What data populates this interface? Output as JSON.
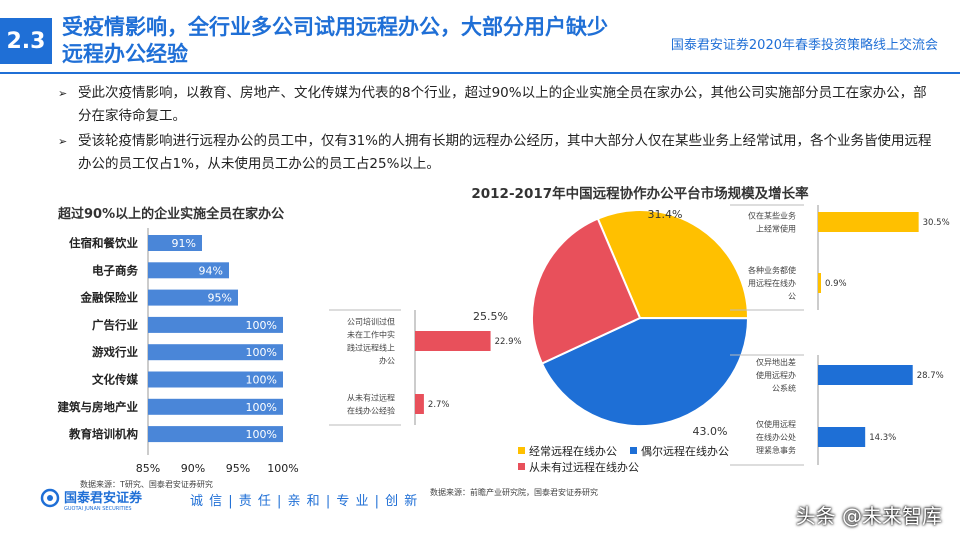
{
  "header": {
    "section_number": "2.3",
    "title": "受疫情影响，全行业多公司试用远程办公，大部分用户缺少远程办公经验",
    "event_name": "国泰君安证券2020年春季投资策略线上交流会"
  },
  "bullets": [
    "受此次疫情影响，以教育、房地产、文化传媒为代表的8个行业，超过90%以上的企业实施全员在家办公，其他公司实施部分员工在家办公，部分在家待命复工。",
    "受该轮疫情影响进行远程办公的员工中，仅有31%的人拥有长期的远程办公经历，其中大部分人仅在某些业务上经常试用，各个业务皆使用远程办公的员工仅占1%，从未使用员工办公的员工占25%以上。"
  ],
  "colors": {
    "brand": "#1f6fd6",
    "bar_blue": "#4a86d8",
    "pie_yellow": "#ffc000",
    "pie_red": "#e8505b",
    "pie_blue": "#1e6fd6"
  },
  "chart_data": [
    {
      "type": "bar",
      "orientation": "horizontal",
      "title": "超过90%以上的企业实施全员在家办公",
      "categories": [
        "住宿和餐饮业",
        "电子商务",
        "金融保险业",
        "广告行业",
        "游戏行业",
        "文化传媒",
        "建筑与房地产业",
        "教育培训机构"
      ],
      "values": [
        91,
        94,
        95,
        100,
        100,
        100,
        100,
        100
      ],
      "value_labels": [
        "91%",
        "94%",
        "95%",
        "100%",
        "100%",
        "100%",
        "100%",
        "100%"
      ],
      "xlim": [
        85,
        100
      ],
      "xticks": [
        "85%",
        "90%",
        "95%",
        "100%"
      ],
      "source": "数据来源：T研究、国泰君安证券研究"
    },
    {
      "type": "pie",
      "title": "2012-2017年中国远程协作办公平台市场规模及增长率",
      "slices": [
        {
          "name": "经常远程在线办公",
          "value": 31.4,
          "label": "31.4%"
        },
        {
          "name": "偶尔远程在线办公",
          "value": 43.0,
          "label": "43.0%"
        },
        {
          "name": "从未有过远程在线办公",
          "value": 25.5,
          "label": "25.5%"
        }
      ],
      "legend": [
        "经常远程在线办公",
        "偶尔远程在线办公",
        "从未有过远程在线办公"
      ],
      "source": "数据来源：前瞻产业研究院，国泰君安证券研究"
    },
    {
      "type": "bar",
      "orientation": "horizontal",
      "breakdown_of": "经常远程在线办公",
      "categories": [
        "仅在某些业务上经常使用",
        "各种业务都使用远程在线办公"
      ],
      "values": [
        30.5,
        0.9
      ],
      "value_labels": [
        "30.5%",
        "0.9%"
      ]
    },
    {
      "type": "bar",
      "orientation": "horizontal",
      "breakdown_of": "偶尔远程在线办公",
      "categories": [
        "仅异地出差使用远程办公系统",
        "仅使用远程在线办公处理紧急事务"
      ],
      "values": [
        28.7,
        14.3
      ],
      "value_labels": [
        "28.7%",
        "14.3%"
      ]
    },
    {
      "type": "bar",
      "orientation": "horizontal",
      "breakdown_of": "从未有过远程在线办公",
      "categories": [
        "公司培训过但未在工作中实践过远程线上办公",
        "从未有过远程在线办公经验"
      ],
      "values": [
        22.9,
        2.7
      ],
      "value_labels": [
        "22.9%",
        "2.7%"
      ]
    }
  ],
  "footer": {
    "logo_text": "国泰君安证券",
    "logo_subtext": "GUOTAI JUNAN SECURITIES",
    "slogan": "诚 信 | 责 任 | 亲 和 | 专 业 | 创 新"
  },
  "watermark": "头条 @未来智库"
}
